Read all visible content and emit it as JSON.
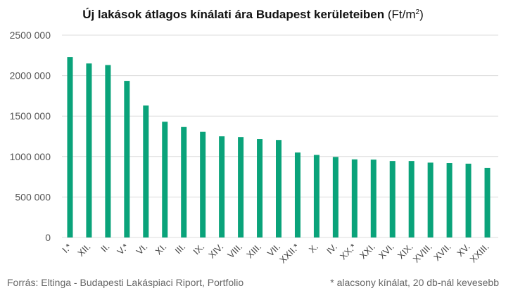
{
  "chart_data": {
    "type": "bar",
    "title": "Új lakások átlagos kínálati ára Budapest kerületeiben",
    "title_unit": "(Ft/m",
    "title_unit_sup": "2",
    "title_unit_close": ")",
    "categories": [
      "I.*",
      "XII.",
      "II.",
      "V.*",
      "VI.",
      "XI.",
      "III.",
      "IX.",
      "XIV.",
      "VIII.",
      "XIII.",
      "VII.",
      "XXII.*",
      "X.",
      "IV.",
      "XX.*",
      "XXI.",
      "XVI.",
      "XIX.",
      "XVIII.",
      "XVII.",
      "XV.",
      "XXIII."
    ],
    "values": [
      2230000,
      2150000,
      2130000,
      1935000,
      1630000,
      1430000,
      1365000,
      1305000,
      1250000,
      1240000,
      1215000,
      1205000,
      1050000,
      1020000,
      995000,
      965000,
      962000,
      945000,
      945000,
      925000,
      920000,
      912000,
      860000
    ],
    "ylim": [
      0,
      2500000
    ],
    "yticks": [
      0,
      500000,
      1000000,
      1500000,
      2000000,
      2500000
    ],
    "ytick_labels": [
      "0",
      "500 000",
      "1000 000",
      "1500 000",
      "2000 000",
      "2500 000"
    ],
    "grid": true,
    "bar_color": "#0aa37a",
    "grid_color": "#dcdcdc"
  },
  "footer": {
    "source": "Forrás: Eltinga - Budapesti Lakáspiaci Riport, Portfolio",
    "note": "* alacsony kínálat, 20 db-nál kevesebb"
  }
}
